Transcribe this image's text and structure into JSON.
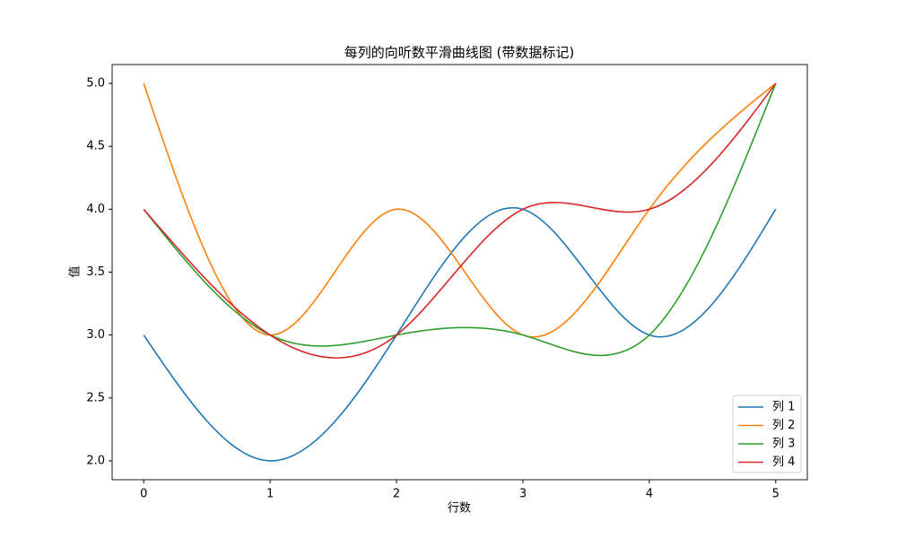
{
  "chart_data": {
    "type": "line",
    "title": "每列的向听数平滑曲线图 (带数据标记)",
    "x_label": "行数",
    "y_label": "值",
    "x": [
      0,
      1,
      2,
      3,
      4,
      5
    ],
    "series": [
      {
        "name": "列 1",
        "color": "#1f77b4",
        "values": [
          3,
          2,
          3,
          4,
          3,
          4
        ]
      },
      {
        "name": "列 2",
        "color": "#ff7f0e",
        "values": [
          5,
          3,
          4,
          3,
          4,
          5
        ]
      },
      {
        "name": "列 3",
        "color": "#2ca02c",
        "values": [
          4,
          3,
          3,
          3,
          3,
          5
        ]
      },
      {
        "name": "列 4",
        "color": "#d62728",
        "values": [
          4,
          3,
          3,
          4,
          4,
          5
        ]
      }
    ],
    "xlim": [
      -0.25,
      5.25
    ],
    "xticks": [
      0,
      1,
      2,
      3,
      4,
      5
    ],
    "ylim": [
      1.85,
      5.15
    ],
    "yticks": [
      {
        "value": 2,
        "label": "2.0"
      },
      {
        "value": 2.5,
        "label": "2.5"
      },
      {
        "value": 3,
        "label": "3.0"
      },
      {
        "value": 3.5,
        "label": "3.5"
      },
      {
        "value": 4,
        "label": "4.0"
      },
      {
        "value": 4.5,
        "label": "4.5"
      },
      {
        "value": 5,
        "label": "5.0"
      }
    ],
    "smooth": true,
    "legend": "lower right"
  }
}
